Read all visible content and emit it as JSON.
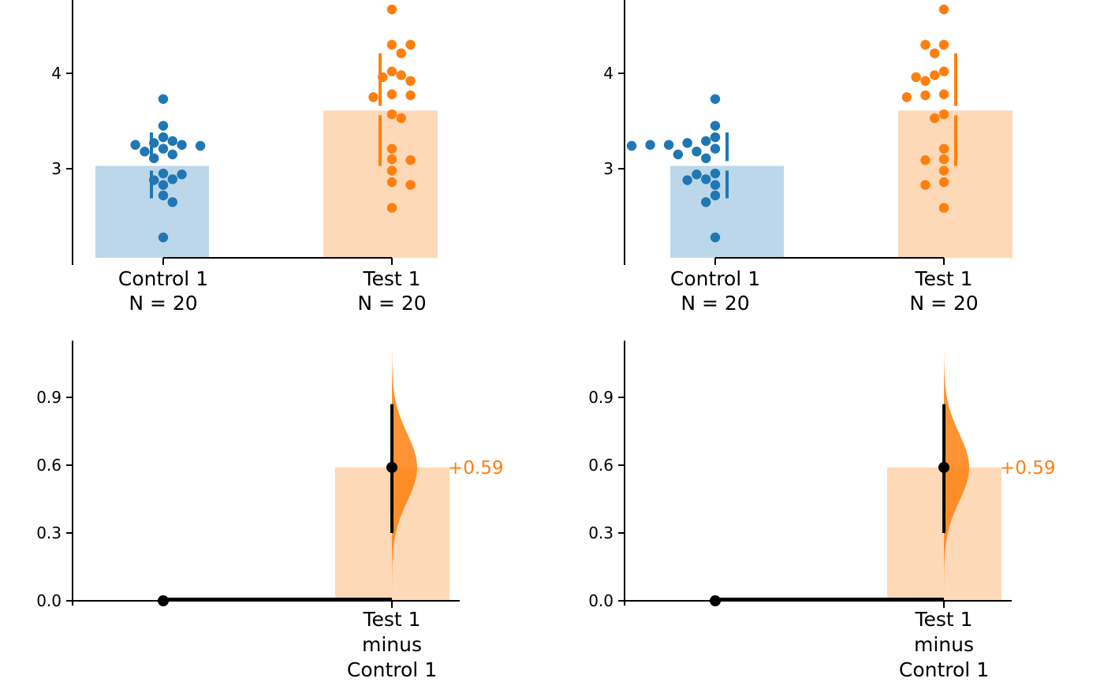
{
  "colors": {
    "control": "#1f77b4",
    "test": "#ff7f0e",
    "control_bar": "#bdd7ea",
    "test_bar": "#fed9b7",
    "delta_bar": "#fed9b7",
    "delta_fill": "#ff7f0e",
    "axis": "#000000"
  },
  "chart_data": [
    {
      "type": "bar",
      "panel": "top-left",
      "swarm_side": "center",
      "categories": [
        "Control 1\nN = 20",
        "Test 1\nN = 20"
      ],
      "bar_values": [
        3.03,
        3.61
      ],
      "error_bars": [
        [
          2.69,
          3.38
        ],
        [
          3.03,
          4.21
        ]
      ],
      "points": [
        [
          3.73,
          3.45,
          3.33,
          3.29,
          3.27,
          3.25,
          3.25,
          3.24,
          3.21,
          3.18,
          3.15,
          3.11,
          2.95,
          2.94,
          2.89,
          2.88,
          2.83,
          2.72,
          2.65,
          2.28
        ],
        [
          4.67,
          4.3,
          4.3,
          4.21,
          4.02,
          3.98,
          3.96,
          3.92,
          3.78,
          3.77,
          3.75,
          3.57,
          3.53,
          3.21,
          3.1,
          3.09,
          2.98,
          2.86,
          2.83,
          2.59
        ]
      ],
      "yticks": [
        "3",
        "4"
      ],
      "ylim": [
        2.1,
        4.67
      ]
    },
    {
      "type": "bar",
      "panel": "top-right",
      "swarm_side": "left",
      "categories": [
        "Control 1\nN = 20",
        "Test 1\nN = 20"
      ],
      "bar_values": [
        3.03,
        3.61
      ],
      "error_bars": [
        [
          2.69,
          3.38
        ],
        [
          3.03,
          4.21
        ]
      ],
      "points": [
        [
          3.73,
          3.45,
          3.33,
          3.29,
          3.27,
          3.25,
          3.25,
          3.24,
          3.21,
          3.18,
          3.15,
          3.11,
          2.95,
          2.94,
          2.89,
          2.88,
          2.83,
          2.72,
          2.65,
          2.28
        ],
        [
          4.67,
          4.3,
          4.3,
          4.21,
          4.02,
          3.98,
          3.96,
          3.92,
          3.78,
          3.77,
          3.75,
          3.57,
          3.53,
          3.21,
          3.1,
          3.09,
          2.98,
          2.86,
          2.83,
          2.59
        ]
      ],
      "yticks": [
        "3",
        "4"
      ],
      "ylim": [
        2.1,
        4.67
      ]
    },
    {
      "type": "bar",
      "panel": "bottom-left",
      "categories": [
        "",
        "Test 1\nminus\nControl 1"
      ],
      "effect_size": 0.59,
      "effect_label": "+0.59",
      "ci": [
        0.3,
        0.87
      ],
      "yticks": [
        "0.0",
        "0.3",
        "0.6",
        "0.9"
      ],
      "ylim": [
        0.0,
        1.1
      ]
    },
    {
      "type": "bar",
      "panel": "bottom-right",
      "categories": [
        "",
        "Test 1\nminus\nControl 1"
      ],
      "effect_size": 0.59,
      "effect_label": "+0.59",
      "ci": [
        0.3,
        0.87
      ],
      "yticks": [
        "0.0",
        "0.3",
        "0.6",
        "0.9"
      ],
      "ylim": [
        0.0,
        1.1
      ]
    }
  ]
}
